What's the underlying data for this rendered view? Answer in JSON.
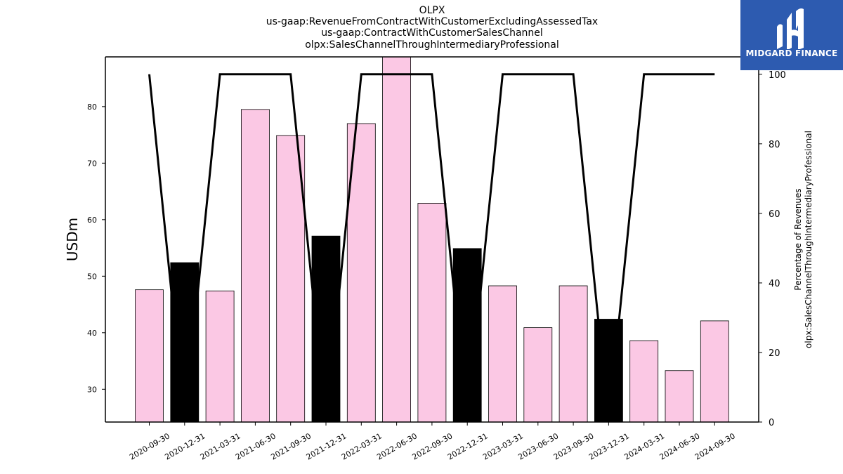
{
  "title_lines": [
    "OLPX",
    "us-gaap:RevenueFromContractWithCustomerExcludingAssessedTax",
    "us-gaap:ContractWithCustomerSalesChannel",
    "olpx:SalesChannelThroughIntermediaryProfessional"
  ],
  "logo": {
    "text": "MIDGARD FINANCE",
    "background": "#2d5bb0"
  },
  "chart_data": {
    "type": "bar",
    "categories": [
      "2020-09-30",
      "2020-12-31",
      "2021-03-31",
      "2021-06-30",
      "2021-09-30",
      "2021-12-31",
      "2022-03-31",
      "2022-06-30",
      "2022-09-30",
      "2022-12-31",
      "2023-03-31",
      "2023-06-30",
      "2023-09-30",
      "2023-12-31",
      "2024-03-31",
      "2024-06-30",
      "2024-09-30"
    ],
    "series": [
      {
        "values": [
          47.6,
          52.4,
          47.4,
          79.5,
          74.9,
          57.1,
          77.0,
          89.0,
          62.9,
          54.9,
          48.3,
          40.9,
          48.3,
          42.4,
          38.6,
          33.3,
          42.1
        ]
      },
      {
        "axis": "right",
        "values": [
          100,
          0,
          100,
          100,
          100,
          0,
          100,
          100,
          100,
          0,
          100,
          100,
          100,
          0,
          100,
          100,
          100
        ]
      }
    ],
    "bar_colors": [
      "#fbc8e4",
      "#000000",
      "#fbc8e4",
      "#fbc8e4",
      "#fbc8e4",
      "#000000",
      "#fbc8e4",
      "#fbc8e4",
      "#fbc8e4",
      "#000000",
      "#fbc8e4",
      "#fbc8e4",
      "#fbc8e4",
      "#000000",
      "#fbc8e4",
      "#fbc8e4",
      "#fbc8e4"
    ],
    "ylabel": "USDm",
    "y2label_lines": [
      "Percentage of Revenues",
      "olpx:SalesChannelThroughIntermediaryProfessional"
    ],
    "ylim": [
      24.2,
      88.8
    ],
    "y2lim": [
      0,
      105
    ],
    "yticks": [
      30,
      40,
      50,
      60,
      70,
      80
    ],
    "y2ticks": [
      0,
      20,
      40,
      60,
      80,
      100
    ],
    "line_color": "#000000",
    "grid": false,
    "legend": "none"
  }
}
